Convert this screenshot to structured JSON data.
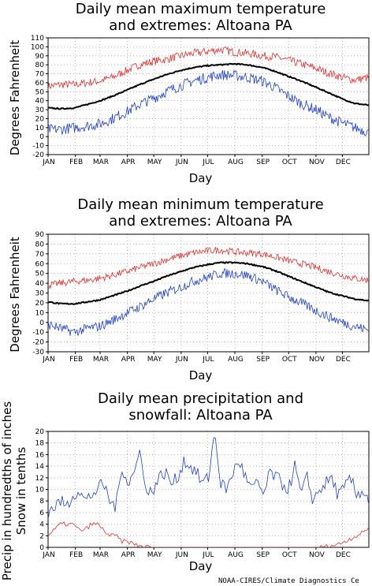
{
  "colors": {
    "mean": "#000000",
    "max_extreme": "#e8312f",
    "min_extreme": "#1f3fd6",
    "precip": "#1f3fd6",
    "snow": "#e8312f",
    "grid": "#888888"
  },
  "credit": "NOAA-CIRES/Climate Diagnostics Ce",
  "chart_data": [
    {
      "type": "line",
      "title": [
        "Daily mean maximum temperature",
        "and extremes: Altoana PA"
      ],
      "xlabel": "Day",
      "ylabel": "Degrees Fahrenheit",
      "ylim": [
        -20,
        110
      ],
      "yticks": [
        -20,
        -10,
        0,
        10,
        20,
        30,
        40,
        50,
        60,
        70,
        80,
        90,
        100,
        110
      ],
      "categories": [
        "JAN",
        "FEB",
        "MAR",
        "APR",
        "MAY",
        "JUN",
        "JUL",
        "AUG",
        "SEP",
        "OCT",
        "NOV",
        "DEC"
      ],
      "xlim": [
        1,
        365
      ],
      "grid": true,
      "series": [
        {
          "role": "max_extreme",
          "noise": 4.5,
          "x": [
            1,
            15,
            31,
            46,
            60,
            74,
            91,
            105,
            121,
            135,
            152,
            166,
            182,
            196,
            213,
            227,
            244,
            258,
            274,
            288,
            305,
            319,
            335,
            349,
            365
          ],
          "values": [
            56,
            58,
            58,
            60,
            62,
            66,
            74,
            80,
            84,
            86,
            90,
            93,
            95,
            97,
            94,
            93,
            90,
            89,
            85,
            81,
            76,
            71,
            66,
            63,
            66
          ]
        },
        {
          "role": "mean",
          "noise": 0.6,
          "x": [
            1,
            15,
            31,
            46,
            60,
            74,
            91,
            105,
            121,
            135,
            152,
            166,
            182,
            196,
            213,
            227,
            244,
            258,
            274,
            288,
            305,
            319,
            335,
            349,
            365
          ],
          "values": [
            32,
            31,
            32,
            36,
            40,
            45,
            52,
            58,
            64,
            69,
            74,
            77,
            79,
            80,
            81,
            80,
            77,
            73,
            67,
            62,
            55,
            49,
            42,
            37,
            35
          ]
        },
        {
          "role": "min_extreme",
          "noise": 6,
          "x": [
            1,
            15,
            31,
            46,
            60,
            74,
            91,
            105,
            121,
            135,
            152,
            166,
            182,
            196,
            213,
            227,
            244,
            258,
            274,
            288,
            305,
            319,
            335,
            349,
            365
          ],
          "values": [
            8,
            8,
            10,
            12,
            14,
            20,
            28,
            36,
            43,
            50,
            57,
            62,
            66,
            69,
            68,
            66,
            62,
            55,
            45,
            37,
            30,
            22,
            15,
            10,
            5
          ]
        }
      ]
    },
    {
      "type": "line",
      "title": [
        "Daily mean minimum temperature",
        "and extremes: Altoana PA"
      ],
      "xlabel": "Day",
      "ylabel": "Degrees Fahrenheit",
      "ylim": [
        -30,
        90
      ],
      "yticks": [
        -30,
        -20,
        -10,
        0,
        10,
        20,
        30,
        40,
        50,
        60,
        70,
        80,
        90
      ],
      "categories": [
        "JAN",
        "FEB",
        "MAR",
        "APR",
        "MAY",
        "JUN",
        "JUL",
        "AUG",
        "SEP",
        "OCT",
        "NOV",
        "DEC"
      ],
      "xlim": [
        1,
        365
      ],
      "grid": true,
      "series": [
        {
          "role": "max_extreme",
          "noise": 3.5,
          "x": [
            1,
            15,
            31,
            46,
            60,
            74,
            91,
            105,
            121,
            135,
            152,
            166,
            182,
            196,
            213,
            227,
            244,
            258,
            274,
            288,
            305,
            319,
            335,
            349,
            365
          ],
          "values": [
            38,
            40,
            42,
            43,
            45,
            48,
            52,
            56,
            60,
            64,
            68,
            71,
            73,
            74,
            72,
            71,
            70,
            67,
            63,
            60,
            56,
            52,
            48,
            45,
            43
          ]
        },
        {
          "role": "mean",
          "noise": 0.6,
          "x": [
            1,
            15,
            31,
            46,
            60,
            74,
            91,
            105,
            121,
            135,
            152,
            166,
            182,
            196,
            213,
            227,
            244,
            258,
            274,
            288,
            305,
            319,
            335,
            349,
            365
          ],
          "values": [
            21,
            19,
            19,
            21,
            23,
            27,
            32,
            37,
            42,
            47,
            52,
            56,
            59,
            61,
            61,
            60,
            57,
            53,
            47,
            42,
            36,
            31,
            27,
            24,
            22
          ]
        },
        {
          "role": "min_extreme",
          "noise": 5,
          "x": [
            1,
            15,
            31,
            46,
            60,
            74,
            91,
            105,
            121,
            135,
            152,
            166,
            182,
            196,
            213,
            227,
            244,
            258,
            274,
            288,
            305,
            319,
            335,
            349,
            365
          ],
          "values": [
            -2,
            -6,
            -10,
            -6,
            -4,
            2,
            10,
            16,
            24,
            30,
            36,
            42,
            46,
            50,
            50,
            48,
            42,
            34,
            26,
            20,
            12,
            6,
            0,
            -4,
            -8
          ]
        }
      ]
    },
    {
      "type": "line",
      "title": [
        "Daily mean precipitation and",
        "snowfall: Altoana PA"
      ],
      "xlabel": "Day",
      "ylabel": [
        "Precip in hundredths of inches",
        "Snow in tenths"
      ],
      "ylim": [
        0,
        20
      ],
      "yticks": [
        0,
        2,
        4,
        6,
        8,
        10,
        12,
        14,
        16,
        18,
        20
      ],
      "categories": [
        "JAN",
        "FEB",
        "MAR",
        "APR",
        "MAY",
        "JUN",
        "JUL",
        "AUG",
        "SEP",
        "OCT",
        "NOV",
        "DEC"
      ],
      "xlim": [
        1,
        365
      ],
      "grid": true,
      "series": [
        {
          "role": "precip",
          "x": [
            1,
            8,
            15,
            22,
            29,
            36,
            43,
            50,
            57,
            64,
            71,
            78,
            85,
            92,
            99,
            106,
            113,
            120,
            127,
            134,
            141,
            148,
            155,
            162,
            169,
            176,
            183,
            190,
            197,
            204,
            211,
            218,
            225,
            232,
            239,
            246,
            253,
            260,
            267,
            274,
            281,
            288,
            295,
            302,
            309,
            316,
            323,
            330,
            337,
            344,
            351,
            358,
            365
          ],
          "values": [
            6,
            7,
            8,
            7,
            9,
            10,
            8,
            9,
            10,
            11,
            8,
            7,
            14,
            11,
            13,
            17,
            9,
            10,
            12,
            13,
            11,
            12,
            15,
            14,
            13,
            11,
            12,
            20,
            11,
            10,
            13,
            15,
            12,
            10,
            11,
            9,
            13,
            12,
            11,
            10,
            14,
            9,
            12,
            8,
            10,
            11,
            12,
            9,
            10,
            12,
            9,
            10,
            8
          ]
        },
        {
          "role": "snow",
          "x": [
            1,
            8,
            15,
            22,
            29,
            36,
            43,
            50,
            57,
            64,
            71,
            78,
            85,
            92,
            99,
            106,
            113,
            120,
            127,
            134,
            141,
            148,
            155,
            162,
            169,
            176,
            183,
            190,
            197,
            204,
            211,
            218,
            225,
            232,
            239,
            246,
            253,
            260,
            267,
            274,
            281,
            288,
            295,
            302,
            309,
            316,
            323,
            330,
            337,
            344,
            351,
            358,
            365
          ],
          "values": [
            2,
            3,
            4,
            4,
            4,
            3,
            3,
            4,
            4,
            3,
            2,
            2,
            1,
            1,
            0.5,
            0.2,
            0.1,
            0,
            0,
            0,
            0,
            0,
            0,
            0,
            0,
            0,
            0,
            0,
            0,
            0,
            0,
            0,
            0,
            0,
            0,
            0,
            0,
            0,
            0,
            0,
            0,
            0,
            0,
            0,
            0,
            0.1,
            0.3,
            0.5,
            1,
            1.5,
            2,
            2.5,
            3.5
          ]
        }
      ]
    }
  ]
}
